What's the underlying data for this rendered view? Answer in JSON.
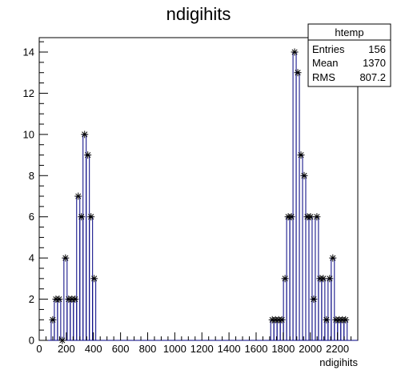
{
  "chart_data": {
    "type": "histogram",
    "title": "ndigihits",
    "xlabel": "ndigihits",
    "ylabel": "",
    "xlim": [
      0,
      2350
    ],
    "ylim": [
      0,
      14.7
    ],
    "x_ticks": [
      0,
      200,
      400,
      600,
      800,
      1000,
      1200,
      1400,
      1600,
      1800,
      2000,
      2200
    ],
    "y_ticks": [
      0,
      2,
      4,
      6,
      8,
      10,
      12,
      14
    ],
    "bin_width": 23.5,
    "line_color": "#000080",
    "marker": "asterisk",
    "bins": [
      {
        "x": 99.9,
        "y": 1
      },
      {
        "x": 123.4,
        "y": 2
      },
      {
        "x": 146.9,
        "y": 2
      },
      {
        "x": 170.4,
        "y": 0
      },
      {
        "x": 193.9,
        "y": 4
      },
      {
        "x": 217.4,
        "y": 2
      },
      {
        "x": 240.9,
        "y": 2
      },
      {
        "x": 264.4,
        "y": 2
      },
      {
        "x": 287.9,
        "y": 7
      },
      {
        "x": 311.4,
        "y": 6
      },
      {
        "x": 334.9,
        "y": 10
      },
      {
        "x": 358.4,
        "y": 9
      },
      {
        "x": 381.9,
        "y": 6
      },
      {
        "x": 405.4,
        "y": 3
      },
      {
        "x": 1719.4,
        "y": 1
      },
      {
        "x": 1742.9,
        "y": 1
      },
      {
        "x": 1766.4,
        "y": 1
      },
      {
        "x": 1789.9,
        "y": 1
      },
      {
        "x": 1813.4,
        "y": 3
      },
      {
        "x": 1836.9,
        "y": 6
      },
      {
        "x": 1860.4,
        "y": 6
      },
      {
        "x": 1883.9,
        "y": 14
      },
      {
        "x": 1907.4,
        "y": 13
      },
      {
        "x": 1930.9,
        "y": 9
      },
      {
        "x": 1954.4,
        "y": 8
      },
      {
        "x": 1977.9,
        "y": 6
      },
      {
        "x": 2001.4,
        "y": 6
      },
      {
        "x": 2024.9,
        "y": 2
      },
      {
        "x": 2048.4,
        "y": 6
      },
      {
        "x": 2071.9,
        "y": 3
      },
      {
        "x": 2095.4,
        "y": 3
      },
      {
        "x": 2118.9,
        "y": 1
      },
      {
        "x": 2142.4,
        "y": 3
      },
      {
        "x": 2165.9,
        "y": 4
      },
      {
        "x": 2189.4,
        "y": 1
      },
      {
        "x": 2212.9,
        "y": 1
      },
      {
        "x": 2236.4,
        "y": 1
      },
      {
        "x": 2259.9,
        "y": 1
      }
    ],
    "stats_box": {
      "title": "htemp",
      "rows": [
        {
          "label": "Entries",
          "value": "156"
        },
        {
          "label": "Mean",
          "value": "1370"
        },
        {
          "label": "RMS",
          "value": "807.2"
        }
      ]
    }
  }
}
